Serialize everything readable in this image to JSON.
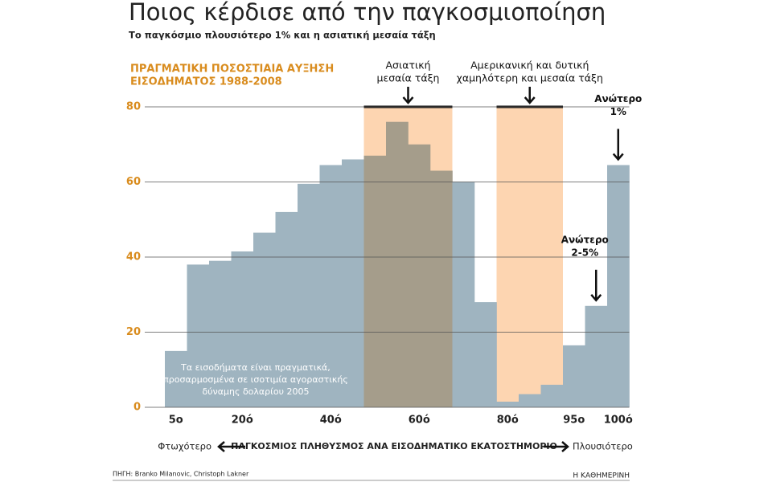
{
  "chart_data": {
    "type": "bar",
    "title": "Ποιος κέρδισε από την παγκοσμιοποίηση",
    "subtitle": "Το παγκόσμιο πλουσιότερο 1% και η ασιατική μεσαία τάξη",
    "y_label": [
      "ΠΡΑΓΜΑΤΙΚΗ ΠΟΣΟΣΤΙΑΙΑ ΑΥΞΗΣΗ",
      "ΕΙΣΟΔΗΜΑΤΟΣ 1988-2008"
    ],
    "x_label": "ΠΑΓΚΟΣΜΙΟΣ ΠΛΗΘΥΣΜΟΣ ΑΝΑ ΕΙΣΟΔΗΜΑΤΙΚΟ ΕΚΑΤΟΣΤΗΜΟΡΙΟ",
    "x_label_left": "Φτωχότερο",
    "x_label_right": "Πλουσιότερο",
    "categories": [
      "5ο",
      null,
      null,
      "20ό",
      null,
      null,
      null,
      "40ό",
      null,
      null,
      null,
      "60ό",
      null,
      null,
      null,
      "80ό",
      null,
      null,
      "95ο",
      null,
      "100ό"
    ],
    "values": [
      15,
      38,
      39,
      41.5,
      46.5,
      52,
      59.5,
      64.5,
      66,
      67,
      76,
      70,
      63,
      60,
      28,
      1.5,
      3.5,
      6,
      16.5,
      27,
      64.5
    ],
    "colors": [
      "#9fb4c0",
      "#9fb4c0",
      "#9fb4c0",
      "#9fb4c0",
      "#9fb4c0",
      "#9fb4c0",
      "#9fb4c0",
      "#9fb4c0",
      "#9fb4c0",
      "#a59d8b",
      "#a59d8b",
      "#a59d8b",
      "#a59d8b",
      "#9fb4c0",
      "#9fb4c0",
      "#9fb4c0",
      "#9fb4c0",
      "#9fb4c0",
      "#9fb4c0",
      "#9fb4c0",
      "#9fb4c0"
    ],
    "ylim": [
      0,
      80
    ],
    "yticks": [
      0,
      20,
      40,
      60,
      80
    ],
    "grid": true,
    "band_color": "#fdd5b1",
    "bands": [
      {
        "label": [
          "Ασιατική",
          "μεσαία τάξη"
        ]
      },
      {
        "label": [
          "Αμερικανική και δυτική",
          "χαμηλότερη και μεσαία τάξη"
        ]
      }
    ],
    "annotations": [
      {
        "label": [
          "Ανώτερο",
          "2-5%"
        ]
      },
      {
        "label": [
          "Ανώτερο",
          "1%"
        ]
      }
    ],
    "note": [
      "Τα εισοδήματα είναι πραγματικά,",
      "προσαρμοσμένα σε ισοτιμία αγοραστικής",
      "δύναμης δολαρίου 2005"
    ],
    "source": "ΠΗΓΗ: Branko Milanovic, Christoph Lakner",
    "publisher": "Η ΚΑΘΗΜΕΡΙΝΗ"
  }
}
